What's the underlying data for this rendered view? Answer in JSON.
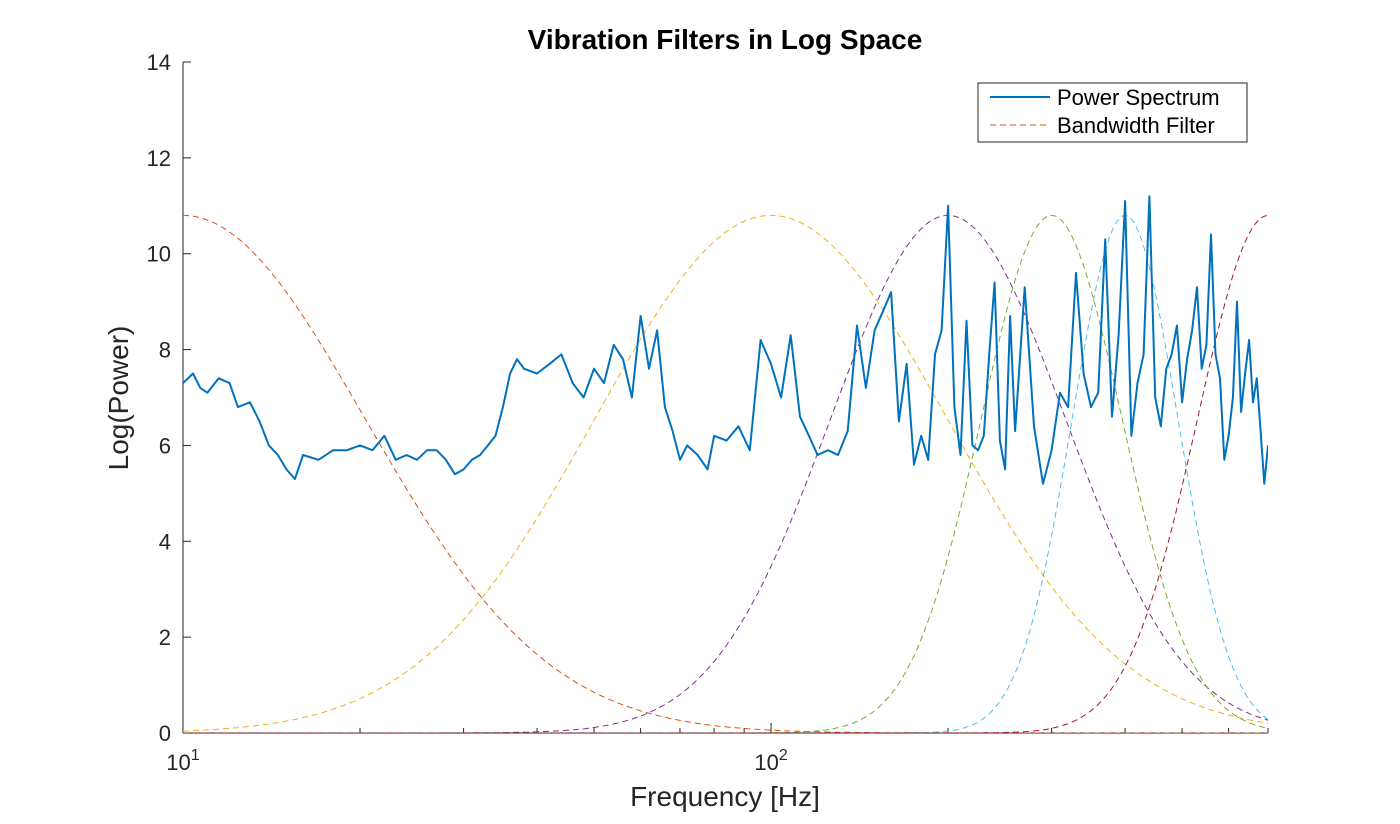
{
  "chart_data": {
    "type": "line",
    "title": "Vibration Filters in Log Space",
    "xlabel": "Frequency [Hz]",
    "ylabel": "Log(Power)",
    "xscale": "log",
    "xlim": [
      10,
      700
    ],
    "ylim": [
      0,
      14
    ],
    "yticks": [
      "0",
      "2",
      "4",
      "6",
      "8",
      "10",
      "12",
      "14"
    ],
    "xticks": [
      {
        "base": "10",
        "exp": "1",
        "value": 10
      },
      {
        "base": "10",
        "exp": "2",
        "value": 100
      }
    ],
    "grid": false,
    "legend": {
      "placement": "top-right",
      "entries": [
        "Power Spectrum",
        "Bandwidth Filter"
      ]
    },
    "series": [
      {
        "name": "Power Spectrum",
        "color": "#0072BD",
        "style": "solid",
        "x": [
          10,
          10.4,
          10.7,
          11,
          11.5,
          12,
          12.4,
          13,
          13.5,
          14,
          14.5,
          15,
          15.5,
          16,
          17,
          18,
          19,
          20,
          21,
          22,
          23,
          24,
          25,
          26,
          27,
          28,
          29,
          30,
          31,
          32,
          33,
          34,
          35,
          36,
          37,
          38,
          40,
          42,
          44,
          46,
          48,
          50,
          52,
          54,
          56,
          58,
          60,
          62,
          64,
          66,
          68,
          70,
          72,
          75,
          78,
          80,
          84,
          88,
          92,
          96,
          100,
          104,
          108,
          112,
          116,
          120,
          125,
          130,
          135,
          140,
          145,
          150,
          155,
          160,
          165,
          170,
          175,
          180,
          185,
          190,
          195,
          200,
          205,
          210,
          215,
          220,
          225,
          230,
          235,
          240,
          245,
          250,
          255,
          260,
          270,
          280,
          290,
          300,
          310,
          320,
          330,
          340,
          350,
          360,
          370,
          380,
          390,
          400,
          410,
          420,
          430,
          440,
          450,
          460,
          470,
          480,
          490,
          500,
          510,
          520,
          530,
          540,
          550,
          560,
          570,
          580,
          590,
          600,
          610,
          620,
          630,
          640,
          650,
          660,
          670,
          680,
          690,
          700
        ],
        "y": [
          7.3,
          7.5,
          7.2,
          7.1,
          7.4,
          7.3,
          6.8,
          6.9,
          6.5,
          6.0,
          5.8,
          5.5,
          5.3,
          5.8,
          5.7,
          5.9,
          5.9,
          6.0,
          5.9,
          6.2,
          5.7,
          5.8,
          5.7,
          5.9,
          5.9,
          5.7,
          5.4,
          5.5,
          5.7,
          5.8,
          6.0,
          6.2,
          6.8,
          7.5,
          7.8,
          7.6,
          7.5,
          7.7,
          7.9,
          7.3,
          7.0,
          7.6,
          7.3,
          8.1,
          7.8,
          7.0,
          8.7,
          7.6,
          8.4,
          6.8,
          6.3,
          5.7,
          6.0,
          5.8,
          5.5,
          6.2,
          6.1,
          6.4,
          5.9,
          8.2,
          7.7,
          7.0,
          8.3,
          6.6,
          6.2,
          5.8,
          5.9,
          5.8,
          6.3,
          8.5,
          7.2,
          8.4,
          8.8,
          9.2,
          6.5,
          7.7,
          5.6,
          6.2,
          5.7,
          7.9,
          8.4,
          11.0,
          6.8,
          5.8,
          8.6,
          6.0,
          5.9,
          6.2,
          7.9,
          9.4,
          6.1,
          5.5,
          8.7,
          6.3,
          9.3,
          6.4,
          5.2,
          5.9,
          7.1,
          6.8,
          9.6,
          7.5,
          6.8,
          7.1,
          10.3,
          6.6,
          8.3,
          11.1,
          6.2,
          7.3,
          7.9,
          11.2,
          7.0,
          6.4,
          7.6,
          7.9,
          8.5,
          6.9,
          7.8,
          8.4,
          9.3,
          7.6,
          8.1,
          10.4,
          7.9,
          7.4,
          5.7,
          6.2,
          7.0,
          9.0,
          6.7,
          7.5,
          8.2,
          6.9,
          7.4,
          6.3,
          5.2,
          6.0
        ]
      },
      {
        "name": "Bandwidth Filter",
        "color": "#D95319",
        "style": "dashed",
        "center": 10,
        "peak": 10.8,
        "sigma": 0.31
      },
      {
        "color": "#EDB120",
        "style": "dashed",
        "center": 100,
        "peak": 10.8,
        "sigma": 0.3
      },
      {
        "color": "#7E2F8E",
        "style": "dashed",
        "center": 200,
        "peak": 10.8,
        "sigma": 0.2
      },
      {
        "color": "#77AC30",
        "style": "dashed",
        "center": 300,
        "peak": 10.8,
        "sigma": 0.12
      },
      {
        "color": "#4DBEEE",
        "style": "dashed",
        "center": 400,
        "peak": 10.8,
        "sigma": 0.09
      },
      {
        "color": "#A2142F",
        "style": "dashed",
        "center": 700,
        "peak": 10.8,
        "sigma": 0.12
      }
    ]
  }
}
